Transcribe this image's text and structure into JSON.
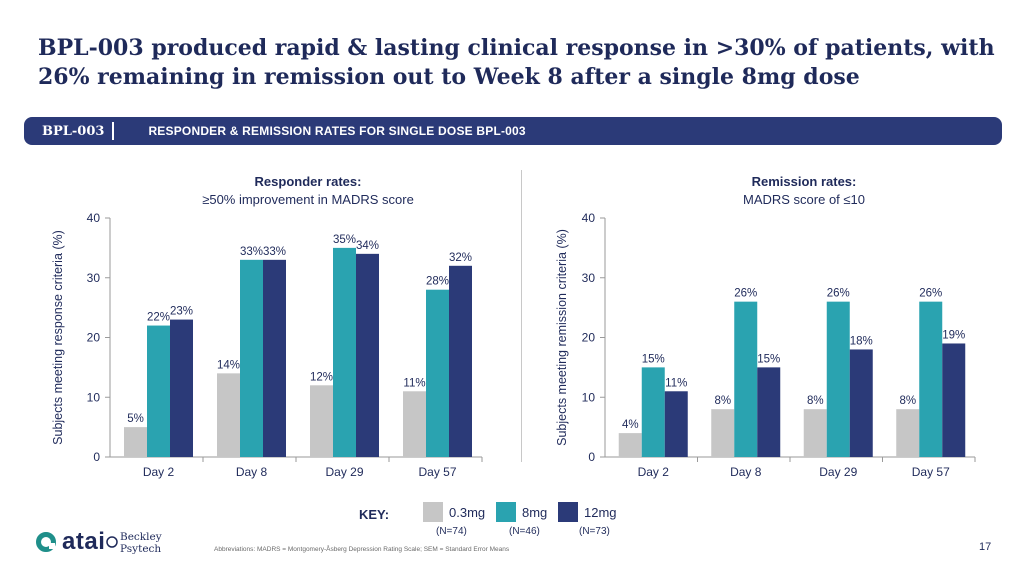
{
  "title": "BPL-003 produced rapid & lasting clinical response in >30% of patients, with 26% remaining in remission out to Week 8 after a single 8mg dose",
  "banner": {
    "code": "BPL-003",
    "text": "RESPONDER & REMISSION RATES FOR SINGLE DOSE BPL-003"
  },
  "colors": {
    "0.3mg": "#c6c6c6",
    "8mg": "#2aa3b0",
    "12mg": "#2b3a78",
    "brand_navy": "#2b3a78",
    "brand_teal": "#1f8f8a"
  },
  "chart_data": [
    {
      "type": "bar",
      "title": "Responder rates:",
      "subtitle": "≥50% improvement in MADRS score",
      "ylabel": "Subjects meeting response criteria (%)",
      "ylim": [
        0,
        40
      ],
      "yticks": [
        0,
        10,
        20,
        30,
        40
      ],
      "categories": [
        "Day 2",
        "Day 8",
        "Day 29",
        "Day 57"
      ],
      "series": [
        {
          "name": "0.3mg",
          "values": [
            5,
            14,
            12,
            11
          ],
          "labels": [
            "5%",
            "14%",
            "12%",
            "11%"
          ]
        },
        {
          "name": "8mg",
          "values": [
            22,
            33,
            35,
            28
          ],
          "labels": [
            "22%",
            "33%",
            "35%",
            "28%"
          ]
        },
        {
          "name": "12mg",
          "values": [
            23,
            33,
            34,
            32
          ],
          "labels": [
            "23%",
            "33%",
            "34%",
            "32%"
          ]
        }
      ],
      "grid": false
    },
    {
      "type": "bar",
      "title": "Remission rates:",
      "subtitle": "MADRS score of ≤10",
      "ylabel": "Subjects meeting remission criteria (%)",
      "ylim": [
        0,
        40
      ],
      "yticks": [
        0,
        10,
        20,
        30,
        40
      ],
      "categories": [
        "Day 2",
        "Day 8",
        "Day 29",
        "Day 57"
      ],
      "series": [
        {
          "name": "0.3mg",
          "values": [
            4,
            8,
            8,
            8
          ],
          "labels": [
            "4%",
            "8%",
            "8%",
            "8%"
          ]
        },
        {
          "name": "8mg",
          "values": [
            15,
            26,
            26,
            26
          ],
          "labels": [
            "15%",
            "26%",
            "26%",
            "26%"
          ]
        },
        {
          "name": "12mg",
          "values": [
            11,
            15,
            18,
            19
          ],
          "labels": [
            "11%",
            "15%",
            "18%",
            "19%"
          ]
        }
      ],
      "grid": false
    }
  ],
  "key": {
    "label": "KEY:",
    "items": [
      {
        "name": "0.3mg",
        "n": "(N=74)"
      },
      {
        "name": "8mg",
        "n": "(N=46)"
      },
      {
        "name": "12mg",
        "n": "(N=73)"
      }
    ]
  },
  "footer": {
    "logo_text": "atai",
    "partner_logo": "Beckley Psytech",
    "abbreviations": "Abbreviations: MADRS = Montgomery-Åsberg Depression Rating Scale; SEM = Standard Error Means",
    "page_number": "17"
  }
}
